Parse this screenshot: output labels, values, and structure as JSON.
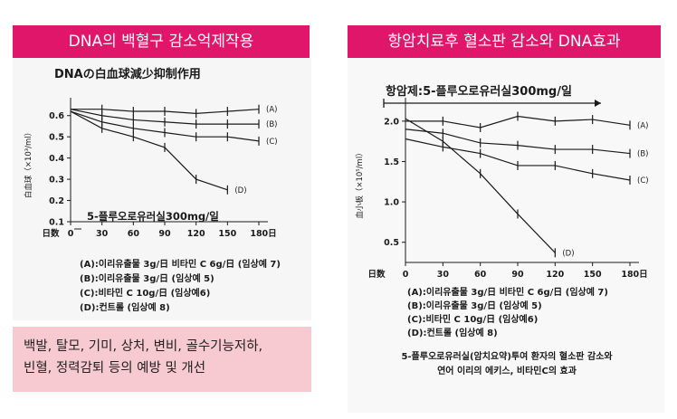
{
  "left_panel": {
    "banner": "DNA의 백혈구 감소억제작용",
    "caption": [
      "백발, 탈모, 기미, 상처, 변비, 골수기능저하,",
      "빈혈, 정력감퇴 등의 예방 및 개선"
    ]
  },
  "right_panel": {
    "banner": "항암치료후 혈소판 감소와 DNA효과"
  },
  "colors": {
    "banner": "#e0166a",
    "note_bg": "#f7c9d1",
    "ink": "#1a1a1a"
  },
  "chart_data": [
    {
      "type": "line",
      "title": "DNAの白血球減少抑制作用",
      "ylabel": "白血球（×10³/ml）",
      "xlabel": "日数",
      "x": [
        0,
        30,
        60,
        90,
        120,
        150,
        180
      ],
      "x_unit": "日",
      "ylim": [
        0.1,
        0.65
      ],
      "yticks": [
        "0.1",
        "0.2",
        "0.3",
        "0.4",
        "0.5",
        "0.6"
      ],
      "annotation": "5-플루오로유러실300mg/일",
      "series": [
        {
          "name": "(A)",
          "x": [
            0,
            30,
            60,
            90,
            120,
            150,
            180
          ],
          "values": [
            0.63,
            0.63,
            0.62,
            0.62,
            0.61,
            0.62,
            0.63
          ]
        },
        {
          "name": "(B)",
          "x": [
            0,
            30,
            60,
            90,
            120,
            150,
            180
          ],
          "values": [
            0.63,
            0.6,
            0.58,
            0.57,
            0.56,
            0.56,
            0.56
          ]
        },
        {
          "name": "(C)",
          "x": [
            0,
            30,
            60,
            90,
            120,
            150,
            180
          ],
          "values": [
            0.62,
            0.57,
            0.54,
            0.52,
            0.5,
            0.5,
            0.48
          ]
        },
        {
          "name": "(D)",
          "x": [
            0,
            30,
            60,
            90,
            120,
            150
          ],
          "values": [
            0.62,
            0.54,
            0.5,
            0.45,
            0.3,
            0.25
          ]
        }
      ],
      "legend": [
        "(A):이리유출물 3g/日 비타민 C 6g/日 (임상예 7)",
        "(B):이리유출물 3g/日 (임상예 5)",
        "(C):비타민 C 10g/日 (임상예6)",
        "(D):컨트롤 (임상예 8)"
      ]
    },
    {
      "type": "line",
      "title": "항암제:5-플루오로유러실300mg/일",
      "ylabel": "血小板（×10⁵/ml）",
      "xlabel": "日数",
      "x": [
        0,
        30,
        60,
        90,
        120,
        150,
        180
      ],
      "x_unit": "日",
      "ylim": [
        0.25,
        2.2
      ],
      "yticks": [
        "0.5",
        "1.0",
        "1.5",
        "2.0"
      ],
      "series": [
        {
          "name": "(A)",
          "x": [
            0,
            30,
            60,
            90,
            120,
            150,
            180
          ],
          "values": [
            2.0,
            2.0,
            1.92,
            2.06,
            2.0,
            2.02,
            1.95
          ]
        },
        {
          "name": "(B)",
          "x": [
            0,
            30,
            60,
            90,
            120,
            150,
            180
          ],
          "values": [
            1.9,
            1.85,
            1.73,
            1.7,
            1.65,
            1.65,
            1.6
          ]
        },
        {
          "name": "(C)",
          "x": [
            0,
            30,
            60,
            90,
            120,
            150,
            180
          ],
          "values": [
            1.78,
            1.68,
            1.6,
            1.45,
            1.45,
            1.35,
            1.27
          ]
        },
        {
          "name": "(D)",
          "x": [
            0,
            30,
            60,
            90,
            120
          ],
          "values": [
            2.03,
            1.75,
            1.35,
            0.85,
            0.37
          ]
        }
      ],
      "legend": [
        "(A):이리유출물 3g/日 비타민 C 6g/日 (임상예 7)",
        "(B):이리유출물 3g/日 (임상예 5)",
        "(C):비타민 C 10g/日 (임상예6)",
        "(D):컨트롤 (임상예 8)"
      ],
      "footnote": [
        "5-플루오로유러실(암치요약)투여 환자의 혈소판 감소와",
        "연어 이리의 에키스,  비타민C의 효과"
      ]
    }
  ]
}
